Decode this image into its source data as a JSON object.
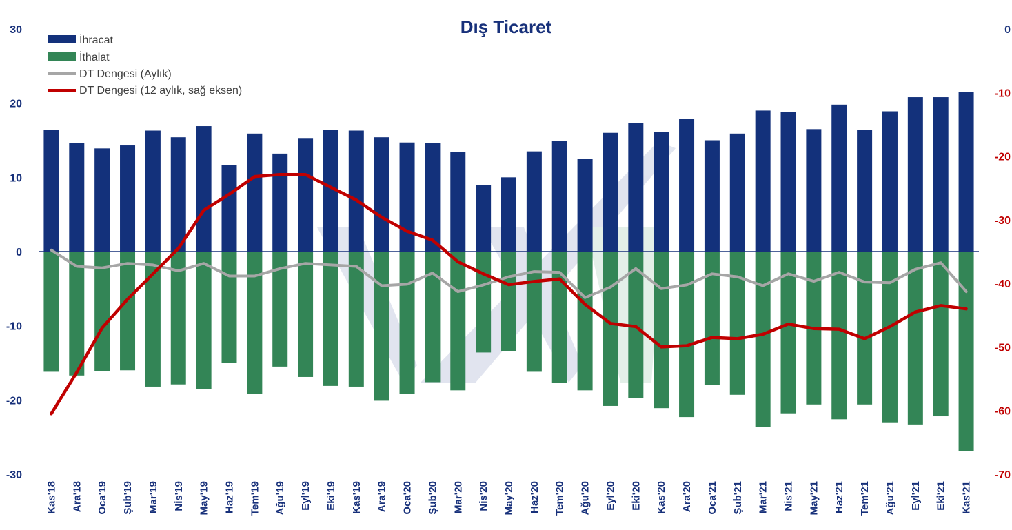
{
  "chart_data": {
    "type": "bar",
    "title": "Dış Ticaret",
    "categories": [
      "Kas'18",
      "Ara'18",
      "Oca'19",
      "Şub'19",
      "Mar'19",
      "Nis'19",
      "May'19",
      "Haz'19",
      "Tem'19",
      "Ağu'19",
      "Eyl'19",
      "Eki'19",
      "Kas'19",
      "Ara'19",
      "Oca'20",
      "Şub'20",
      "Mar'20",
      "Nis'20",
      "May'20",
      "Haz'20",
      "Tem'20",
      "Ağu'20",
      "Eyl'20",
      "Eki'20",
      "Kas'20",
      "Ara'20",
      "Oca'21",
      "Şub'21",
      "Mar'21",
      "Nis'21",
      "May'21",
      "Haz'21",
      "Tem'21",
      "Ağu'21",
      "Eyl'21",
      "Eki'21",
      "Kas'21"
    ],
    "y_left": {
      "min": -30,
      "max": 30,
      "ticks": [
        "30",
        "20",
        "10",
        "0",
        "-10",
        "-20",
        "-30"
      ]
    },
    "y_right": {
      "min": -70,
      "max": 0,
      "ticks": [
        "0",
        "-10",
        "-20",
        "-30",
        "-40",
        "-50",
        "-60",
        "-70"
      ]
    },
    "series": [
      {
        "name": "İhracat",
        "type": "bar",
        "axis": "left",
        "color": "#13317b",
        "values": [
          16.4,
          14.6,
          13.9,
          14.3,
          16.3,
          15.4,
          16.9,
          11.7,
          15.9,
          13.2,
          15.3,
          16.4,
          16.3,
          15.4,
          14.7,
          14.6,
          13.4,
          9.0,
          10.0,
          13.5,
          14.9,
          12.5,
          16.0,
          17.3,
          16.1,
          17.9,
          15.0,
          15.9,
          19.0,
          18.8,
          16.5,
          19.8,
          16.4,
          18.9,
          20.8,
          20.8,
          21.5
        ]
      },
      {
        "name": "İthalat",
        "type": "bar",
        "axis": "left",
        "color": "#338556",
        "values": [
          -16.2,
          -16.7,
          -16.1,
          -16.0,
          -18.2,
          -17.9,
          -18.5,
          -15.0,
          -19.2,
          -15.5,
          -16.9,
          -18.1,
          -18.2,
          -20.1,
          -19.2,
          -17.6,
          -18.7,
          -13.6,
          -13.4,
          -16.2,
          -17.7,
          -18.7,
          -20.8,
          -19.7,
          -21.1,
          -22.3,
          -18.0,
          -19.3,
          -23.6,
          -21.8,
          -20.6,
          -22.6,
          -20.6,
          -23.1,
          -23.3,
          -22.2,
          -26.9
        ]
      },
      {
        "name": "DT Dengesi (Aylık)",
        "type": "line",
        "axis": "left",
        "color": "#a6a6a6",
        "values": [
          0.2,
          -2.0,
          -2.2,
          -1.6,
          -1.8,
          -2.6,
          -1.6,
          -3.3,
          -3.3,
          -2.3,
          -1.6,
          -1.8,
          -2.0,
          -4.6,
          -4.4,
          -2.9,
          -5.4,
          -4.5,
          -3.4,
          -2.7,
          -2.8,
          -6.2,
          -4.8,
          -2.3,
          -5.0,
          -4.5,
          -3.0,
          -3.4,
          -4.6,
          -3.0,
          -4.0,
          -2.8,
          -4.1,
          -4.2,
          -2.4,
          -1.5,
          -5.4
        ]
      },
      {
        "name": "DT Dengesi (12 aylık, sağ eksen)",
        "type": "line",
        "axis": "right",
        "color": "#c00000",
        "values": [
          -60.5,
          -54.0,
          -47.0,
          -42.5,
          -38.5,
          -34.5,
          -28.5,
          -26.0,
          -23.2,
          -22.9,
          -22.9,
          -24.9,
          -26.9,
          -29.6,
          -31.8,
          -33.2,
          -36.6,
          -38.5,
          -40.2,
          -39.7,
          -39.3,
          -43.3,
          -46.3,
          -46.8,
          -50.0,
          -49.8,
          -48.5,
          -48.7,
          -48.0,
          -46.4,
          -47.1,
          -47.2,
          -48.7,
          -46.8,
          -44.5,
          -43.5,
          -44.0
        ]
      }
    ]
  }
}
